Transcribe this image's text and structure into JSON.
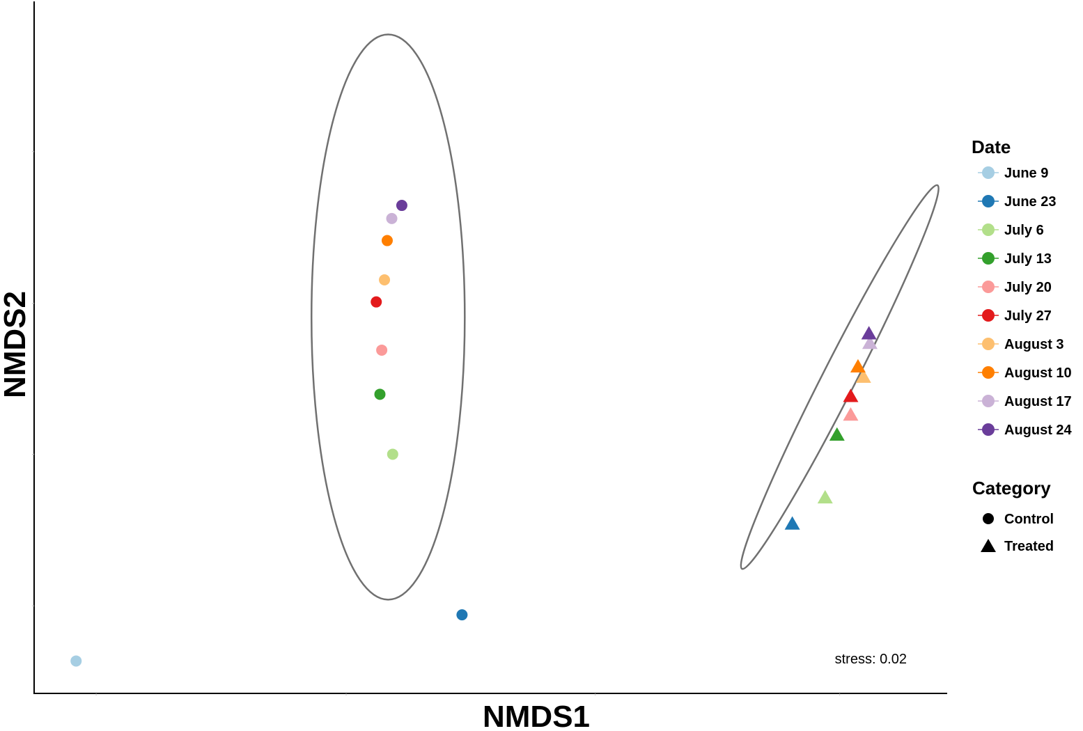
{
  "chart_data": {
    "type": "scatter",
    "title": "",
    "xlabel": "NMDS1",
    "ylabel": "NMDS2",
    "xlim": [
      0,
      100
    ],
    "ylim": [
      0,
      100
    ],
    "tick_labels_shown": false,
    "grid": false,
    "annotation": "stress: 0.02",
    "legend_placement": "right",
    "legends": {
      "date_title": "Date",
      "category_title": "Category",
      "dates": [
        {
          "name": "June 9",
          "color": "#a6cee3"
        },
        {
          "name": "June 23",
          "color": "#1f78b4"
        },
        {
          "name": "July 6",
          "color": "#b2df8a"
        },
        {
          "name": "July 13",
          "color": "#33a02c"
        },
        {
          "name": "July 20",
          "color": "#fb9a99"
        },
        {
          "name": "July 27",
          "color": "#e31a1c"
        },
        {
          "name": "August 3",
          "color": "#fdbf6f"
        },
        {
          "name": "August 10",
          "color": "#ff7f00"
        },
        {
          "name": "August 17",
          "color": "#cab2d6"
        },
        {
          "name": "August 24",
          "color": "#6a3d9a"
        }
      ],
      "categories": [
        {
          "name": "Control",
          "shape": "circle"
        },
        {
          "name": "Treated",
          "shape": "triangle"
        }
      ]
    },
    "series": [
      {
        "name": "Control",
        "shape": "circle",
        "points": [
          {
            "date": "June 9",
            "x": 4.6,
            "y": 4.5
          },
          {
            "date": "June 23",
            "x": 46.9,
            "y": 11.2
          },
          {
            "date": "July 6",
            "x": 39.3,
            "y": 34.5
          },
          {
            "date": "July 13",
            "x": 37.9,
            "y": 43.2
          },
          {
            "date": "July 20",
            "x": 38.1,
            "y": 49.6
          },
          {
            "date": "July 27",
            "x": 37.5,
            "y": 56.6
          },
          {
            "date": "August 3",
            "x": 38.4,
            "y": 59.8
          },
          {
            "date": "August 10",
            "x": 38.7,
            "y": 65.5
          },
          {
            "date": "August 17",
            "x": 39.2,
            "y": 68.7
          },
          {
            "date": "August 24",
            "x": 40.3,
            "y": 70.6
          }
        ]
      },
      {
        "name": "Treated",
        "shape": "triangle",
        "points": [
          {
            "date": "June 23",
            "x": 83.1,
            "y": 24.4
          },
          {
            "date": "July 6",
            "x": 86.7,
            "y": 28.2
          },
          {
            "date": "July 13",
            "x": 88.0,
            "y": 37.3
          },
          {
            "date": "July 20",
            "x": 89.5,
            "y": 40.2
          },
          {
            "date": "July 27",
            "x": 89.5,
            "y": 42.9
          },
          {
            "date": "August 3",
            "x": 90.9,
            "y": 45.7
          },
          {
            "date": "August 10",
            "x": 90.3,
            "y": 47.2
          },
          {
            "date": "August 17",
            "x": 91.6,
            "y": 50.6
          },
          {
            "date": "August 24",
            "x": 91.5,
            "y": 52.0
          }
        ]
      }
    ],
    "ellipses": [
      {
        "group": "Control",
        "cx": 38.8,
        "cy": 54.4,
        "rx": 8.4,
        "ry": 41.0,
        "angle": 0
      },
      {
        "group": "Treated",
        "cx": 88.3,
        "cy": 45.7,
        "rx": 23.6,
        "ry": 2.4,
        "angle": -63
      }
    ]
  }
}
